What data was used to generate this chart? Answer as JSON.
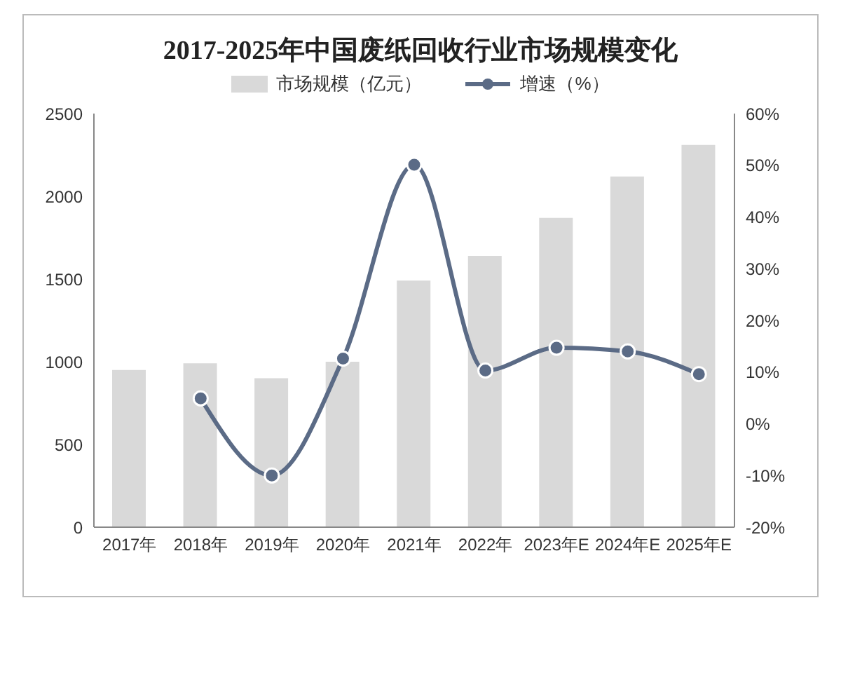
{
  "chart_data": {
    "type": "bar",
    "title": "2017-2025年中国废纸回收行业市场规模变化",
    "categories": [
      "2017年",
      "2018年",
      "2019年",
      "2020年",
      "2021年",
      "2022年",
      "2023年E",
      "2024年E",
      "2025年E"
    ],
    "series": [
      {
        "name": "市场规模（亿元）",
        "color": "#d9d9d9",
        "values": [
          950,
          990,
          900,
          1000,
          1490,
          1640,
          1870,
          2120,
          2310
        ]
      },
      {
        "name": "增速（%）",
        "type": "line",
        "axis": "y2",
        "color": "#5b6b86",
        "values": [
          null,
          4.9,
          -10,
          12.6,
          50.1,
          10.3,
          14.7,
          14.0,
          9.6
        ]
      }
    ],
    "ylim": [
      0,
      2500
    ],
    "yticks": [
      0,
      500,
      1000,
      1500,
      2000,
      2500
    ],
    "y2lim": [
      -20,
      60
    ],
    "y2ticks": [
      {
        "value": -20,
        "label": "-20%"
      },
      {
        "value": -10,
        "label": "-10%"
      },
      {
        "value": 0,
        "label": "0%"
      },
      {
        "value": 10,
        "label": "10%"
      },
      {
        "value": 20,
        "label": "20%"
      },
      {
        "value": 30,
        "label": "30%"
      },
      {
        "value": 40,
        "label": "40%"
      },
      {
        "value": 50,
        "label": "50%"
      },
      {
        "value": 60,
        "label": "60%"
      }
    ],
    "legend": "top",
    "marker": "circle",
    "line_style": "solid",
    "grid": false
  }
}
